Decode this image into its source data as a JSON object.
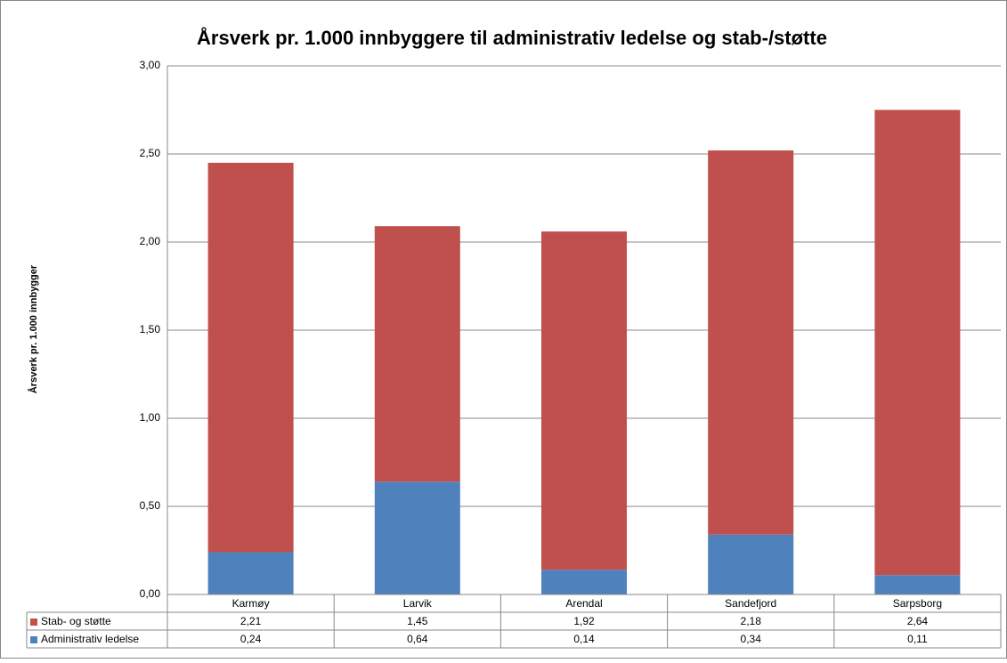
{
  "chart_data": {
    "type": "stacked_bar",
    "title": "Årsverk pr. 1.000 innbyggere til administrativ ledelse og stab-/støtte",
    "y_label": "Årsverk pr. 1.000 innbygger",
    "categories": [
      "Karmøy",
      "Larvik",
      "Arendal",
      "Sandefjord",
      "Sarpsborg"
    ],
    "series": [
      {
        "name": "Stab- og støtte",
        "color": "#c0504d",
        "values": [
          2.21,
          1.45,
          1.92,
          2.18,
          2.64
        ],
        "value_labels": [
          "2,21",
          "1,45",
          "1,92",
          "2,18",
          "2,64"
        ]
      },
      {
        "name": "Administrativ ledelse",
        "color": "#4f81bd",
        "values": [
          0.24,
          0.64,
          0.14,
          0.34,
          0.11
        ],
        "value_labels": [
          "0,24",
          "0,64",
          "0,14",
          "0,34",
          "0,11"
        ]
      }
    ],
    "ylim": [
      0,
      3
    ],
    "yticks": [
      {
        "value": 0,
        "label": "0,00"
      },
      {
        "value": 0.5,
        "label": "0,50"
      },
      {
        "value": 1,
        "label": "1,00"
      },
      {
        "value": 1.5,
        "label": "1,50"
      },
      {
        "value": 2,
        "label": "2,00"
      },
      {
        "value": 2.5,
        "label": "2,50"
      },
      {
        "value": 3,
        "label": "3,00"
      }
    ],
    "grid": true,
    "data_table": true
  }
}
